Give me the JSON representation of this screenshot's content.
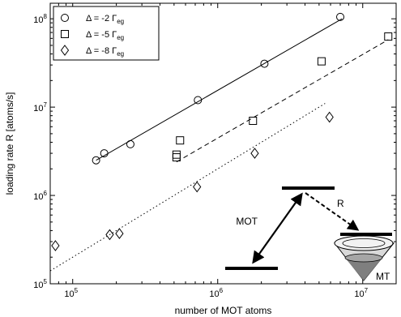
{
  "chart_data": {
    "type": "scatter",
    "x_scale": "log",
    "y_scale": "log",
    "xlim": [
      70000,
      17000000
    ],
    "ylim": [
      100000,
      150000000
    ],
    "xlabel": "number of MOT atoms",
    "ylabel": "loading rate R [atoms/s]",
    "grid": false,
    "legend_position": "top-left",
    "x_ticks": [
      {
        "value": 100000,
        "base": "10",
        "exp": "5"
      },
      {
        "value": 1000000,
        "base": "10",
        "exp": "6"
      },
      {
        "value": 10000000,
        "base": "10",
        "exp": "7"
      }
    ],
    "y_ticks": [
      {
        "value": 100000,
        "base": "10",
        "exp": "5"
      },
      {
        "value": 1000000,
        "base": "10",
        "exp": "6"
      },
      {
        "value": 10000000,
        "base": "10",
        "exp": "7"
      },
      {
        "value": 100000000,
        "base": "10",
        "exp": "8"
      }
    ],
    "series": [
      {
        "name": "Δ = -2  Γeg",
        "legend": {
          "prefix": "Δ = -2  Γ",
          "sub": "eg"
        },
        "marker": "circle",
        "fit_style": "solid",
        "points": [
          [
            145000,
            2500000
          ],
          [
            165000,
            3000000
          ],
          [
            250000,
            3800000
          ],
          [
            730000,
            12000000
          ],
          [
            2100000,
            31000000
          ],
          [
            7000000,
            105000000
          ]
        ],
        "fit": [
          [
            145000,
            2500000
          ],
          [
            7200000,
            100000000
          ]
        ]
      },
      {
        "name": "Δ = -5  Γeg",
        "legend": {
          "prefix": "Δ = -5  Γ",
          "sub": "eg"
        },
        "marker": "square",
        "fit_style": "dashed",
        "points": [
          [
            520000,
            2700000
          ],
          [
            520000,
            2900000
          ],
          [
            550000,
            4200000
          ],
          [
            1750000,
            7000000
          ],
          [
            5200000,
            33000000
          ],
          [
            15000000,
            63000000
          ]
        ],
        "fit": [
          [
            520000,
            2400000
          ],
          [
            15000000,
            58000000
          ]
        ]
      },
      {
        "name": "Δ = -8  Γeg",
        "legend": {
          "prefix": "Δ = -8  Γ",
          "sub": "eg"
        },
        "marker": "diamond",
        "fit_style": "dotted",
        "points": [
          [
            76000,
            270000
          ],
          [
            180000,
            360000
          ],
          [
            210000,
            370000
          ],
          [
            720000,
            1250000
          ],
          [
            1800000,
            3000000
          ],
          [
            5900000,
            7700000
          ]
        ],
        "fit": [
          [
            70000,
            140000
          ],
          [
            5500000,
            11000000
          ]
        ]
      }
    ],
    "inset": {
      "mot_label": "MOT",
      "r_label": "R",
      "mt_label": "MT"
    }
  }
}
